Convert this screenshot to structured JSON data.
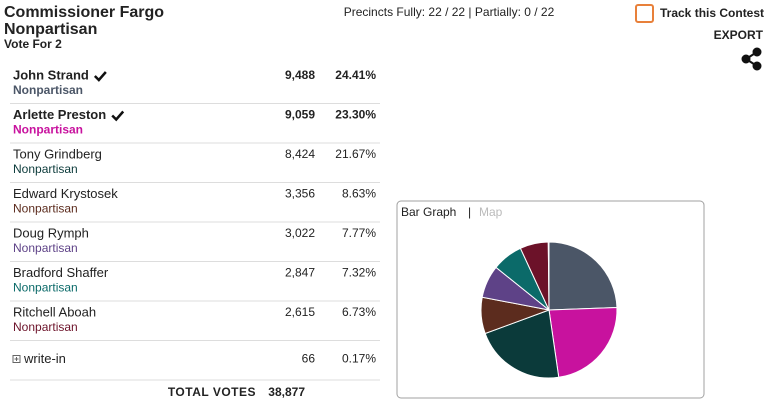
{
  "header": {
    "title": "Commissioner Fargo",
    "subtitle": "Nonpartisan",
    "vote_for": "Vote For 2",
    "precincts": "Precincts Fully: 22 / 22 | Partially: 0 / 22",
    "track": "Track this Contest",
    "export": "EXPORT"
  },
  "results": {
    "rows": [
      {
        "name": "John Strand",
        "party": "Nonpartisan",
        "votes": "9,488",
        "percent": "24.41%",
        "winner": true
      },
      {
        "name": "Arlette Preston",
        "party": "Nonpartisan",
        "votes": "9,059",
        "percent": "23.30%",
        "winner": true
      },
      {
        "name": "Tony Grindberg",
        "party": "Nonpartisan",
        "votes": "8,424",
        "percent": "21.67%",
        "winner": false
      },
      {
        "name": "Edward Krystosek",
        "party": "Nonpartisan",
        "votes": "3,356",
        "percent": "8.63%",
        "winner": false
      },
      {
        "name": "Doug Rymph",
        "party": "Nonpartisan",
        "votes": "3,022",
        "percent": "7.77%",
        "winner": false
      },
      {
        "name": "Bradford Shaffer",
        "party": "Nonpartisan",
        "votes": "2,847",
        "percent": "7.32%",
        "winner": false
      },
      {
        "name": "Ritchell Aboah",
        "party": "Nonpartisan",
        "votes": "2,615",
        "percent": "6.73%",
        "winner": false
      },
      {
        "name": "write-in",
        "votes": "66",
        "percent": "0.17%",
        "winner": false
      }
    ],
    "total_label": "TOTAL VOTES",
    "total": "38,877"
  },
  "chart_data": {
    "type": "pie",
    "tabs": [
      "Bar Graph",
      "Map"
    ],
    "tab_separator": "|",
    "values": [
      24.41,
      23.3,
      21.67,
      8.63,
      7.77,
      7.32,
      6.73,
      0.17
    ],
    "colors": [
      "#4b5667",
      "#c8129e",
      "#0b3a3a",
      "#5c2c1e",
      "#5e4287",
      "#0b6a69",
      "#6c1229",
      "#6e2a7e"
    ]
  }
}
